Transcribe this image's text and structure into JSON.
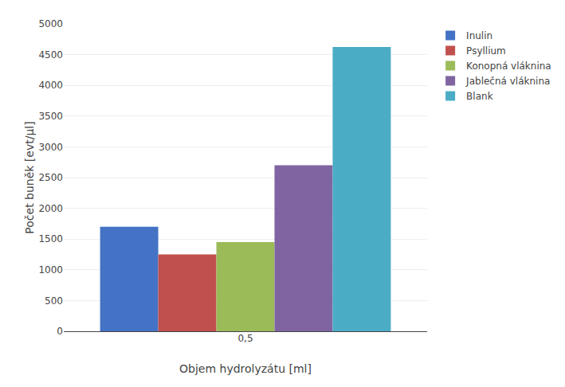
{
  "chart_data": {
    "type": "bar",
    "categories": [
      "0,5"
    ],
    "series": [
      {
        "name": "Inulin",
        "color": "#4472C4",
        "values": [
          1700
        ]
      },
      {
        "name": "Psyllium",
        "color": "#C0504D",
        "values": [
          1250
        ]
      },
      {
        "name": "Konopná vláknina",
        "color": "#9BBB59",
        "values": [
          1450
        ]
      },
      {
        "name": "Jablečná vláknina",
        "color": "#8064A2",
        "values": [
          2700
        ]
      },
      {
        "name": "Blank",
        "color": "#4BACC6",
        "values": [
          4625
        ]
      }
    ],
    "xlabel": "Objem hydrolyzátu [ml]",
    "ylabel": "Počet buněk [evt/μl]",
    "ylim": [
      0,
      5000
    ],
    "yticks": [
      0,
      500,
      1000,
      1500,
      2000,
      2500,
      3000,
      3500,
      4000,
      4500,
      5000
    ],
    "grid": true,
    "legend": "right"
  }
}
